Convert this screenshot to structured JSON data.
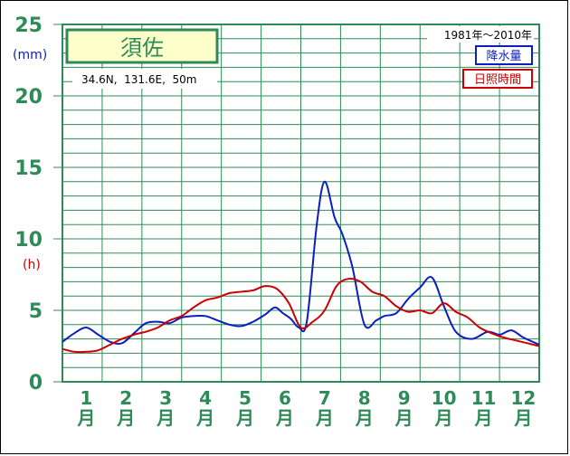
{
  "chart_data": {
    "type": "line",
    "station": "須佐",
    "coords": "34.6N,  131.6E,  50m",
    "period": "1981年〜2010年",
    "y_units": {
      "precip": "(mm)",
      "sun": "(h)"
    },
    "ylim": [
      0,
      25
    ],
    "yticks": [
      "0",
      "5",
      "10",
      "15",
      "20",
      "25"
    ],
    "categories": [
      "1",
      "2",
      "3",
      "4",
      "5",
      "6",
      "7",
      "8",
      "9",
      "10",
      "11",
      "12"
    ],
    "month_suffix": "月",
    "grid": true,
    "legend_position": "top-right",
    "series": [
      {
        "name": "降水量",
        "color": "#0a1fc0",
        "x": [
          0.0,
          0.3,
          0.6,
          0.9,
          1.2,
          1.5,
          1.8,
          2.1,
          2.4,
          2.7,
          3.0,
          3.3,
          3.6,
          3.9,
          4.2,
          4.5,
          4.8,
          5.1,
          5.35,
          5.55,
          5.75,
          5.95,
          6.15,
          6.4,
          6.6,
          6.85,
          7.05,
          7.3,
          7.6,
          7.9,
          8.1,
          8.4,
          8.7,
          9.0,
          9.3,
          9.6,
          9.9,
          10.3,
          10.7,
          11.0,
          11.3,
          11.6,
          12.0
        ],
        "values": [
          2.8,
          3.4,
          3.8,
          3.3,
          2.8,
          2.7,
          3.4,
          4.1,
          4.2,
          4.1,
          4.5,
          4.6,
          4.6,
          4.3,
          4.0,
          3.9,
          4.2,
          4.7,
          5.2,
          4.8,
          4.4,
          3.8,
          4.2,
          11.0,
          14.0,
          11.5,
          10.3,
          8.0,
          4.0,
          4.3,
          4.6,
          4.8,
          5.8,
          6.6,
          7.3,
          5.3,
          3.5,
          3.0,
          3.5,
          3.3,
          3.6,
          3.1,
          2.6
        ]
      },
      {
        "name": "日照時間",
        "color": "#cc0000",
        "x": [
          0.0,
          0.3,
          0.6,
          0.9,
          1.2,
          1.5,
          1.8,
          2.1,
          2.4,
          2.7,
          3.0,
          3.3,
          3.6,
          3.9,
          4.2,
          4.5,
          4.8,
          5.1,
          5.4,
          5.7,
          6.0,
          6.3,
          6.6,
          6.9,
          7.2,
          7.5,
          7.8,
          8.1,
          8.4,
          8.7,
          9.0,
          9.3,
          9.6,
          9.9,
          10.2,
          10.5,
          10.8,
          11.1,
          11.4,
          11.7,
          12.0
        ],
        "values": [
          2.3,
          2.1,
          2.1,
          2.2,
          2.6,
          3.0,
          3.3,
          3.5,
          3.8,
          4.3,
          4.6,
          5.2,
          5.7,
          5.9,
          6.2,
          6.3,
          6.4,
          6.7,
          6.5,
          5.5,
          3.8,
          4.2,
          5.0,
          6.7,
          7.2,
          7.0,
          6.3,
          6.0,
          5.3,
          4.9,
          5.0,
          4.8,
          5.5,
          4.9,
          4.5,
          3.8,
          3.4,
          3.1,
          2.9,
          2.7,
          2.5
        ]
      }
    ]
  }
}
